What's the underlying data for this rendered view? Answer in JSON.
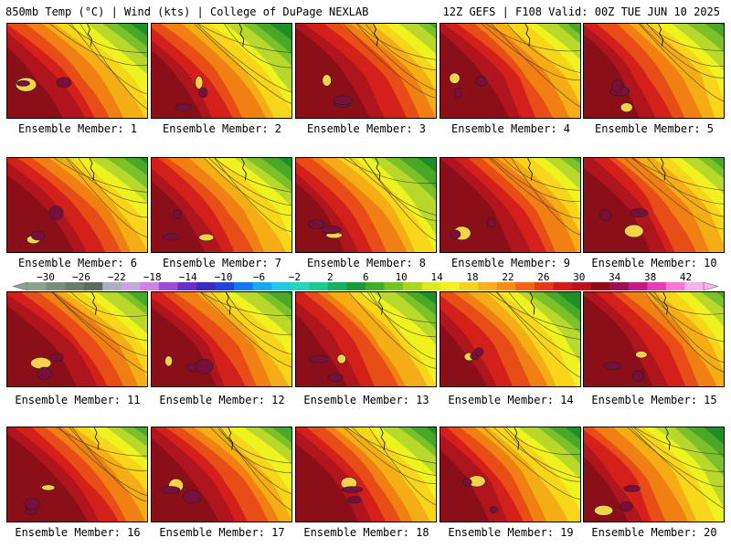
{
  "header": {
    "left_title": "850mb Temp (°C) | Wind (kts) | College of DuPage NEXLAB",
    "right_title": "12Z GEFS | F108 Valid: 00Z TUE JUN 10 2025"
  },
  "panels": [
    {
      "label": "Ensemble Member: 1"
    },
    {
      "label": "Ensemble Member: 2"
    },
    {
      "label": "Ensemble Member: 3"
    },
    {
      "label": "Ensemble Member: 4"
    },
    {
      "label": "Ensemble Member: 5"
    },
    {
      "label": "Ensemble Member: 6"
    },
    {
      "label": "Ensemble Member: 7"
    },
    {
      "label": "Ensemble Member: 8"
    },
    {
      "label": "Ensemble Member: 9"
    },
    {
      "label": "Ensemble Member: 10"
    },
    {
      "label": "Ensemble Member: 11"
    },
    {
      "label": "Ensemble Member: 12"
    },
    {
      "label": "Ensemble Member: 13"
    },
    {
      "label": "Ensemble Member: 14"
    },
    {
      "label": "Ensemble Member: 15"
    },
    {
      "label": "Ensemble Member: 16"
    },
    {
      "label": "Ensemble Member: 17"
    },
    {
      "label": "Ensemble Member: 18"
    },
    {
      "label": "Ensemble Member: 19"
    },
    {
      "label": "Ensemble Member: 20"
    }
  ],
  "colorbar": {
    "labels": [
      "−30",
      "−26",
      "−22",
      "−18",
      "−14",
      "−10",
      "−6",
      "−2",
      "2",
      "6",
      "10",
      "14",
      "18",
      "22",
      "26",
      "30",
      "34",
      "38",
      "42"
    ],
    "colors": [
      "#8ea08e",
      "#7b8d7b",
      "#6a7c6a",
      "#5d6b5d",
      "#aab0c0",
      "#c8a6e0",
      "#d27fe6",
      "#a648d6",
      "#6b2fc4",
      "#3d2bbf",
      "#2244d8",
      "#1a77ea",
      "#19a8ee",
      "#1fc9e8",
      "#26d6c3",
      "#1ec98d",
      "#18b05a",
      "#1f9a3a",
      "#3fae2a",
      "#6fc426",
      "#a8d81e",
      "#dbe81a",
      "#f7f21a",
      "#fbd21a",
      "#fbb019",
      "#f78e18",
      "#f26518",
      "#e63a19",
      "#d41b1b",
      "#b8141a",
      "#8e0f17",
      "#9a1157",
      "#c01c88",
      "#e13fb5",
      "#f27ad6",
      "#f9b1ec"
    ]
  }
}
